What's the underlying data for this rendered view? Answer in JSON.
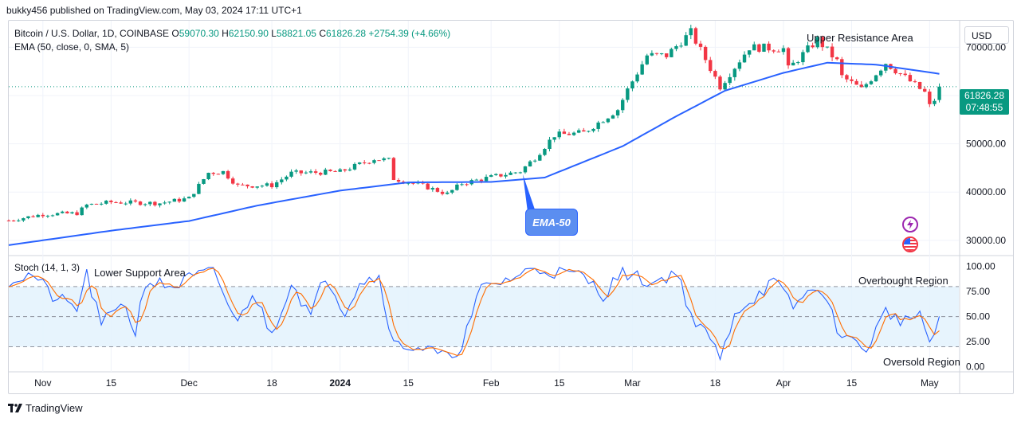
{
  "publisher": "bukky456 published on TradingView.com, May 03, 2024 17:11 UTC+1",
  "symbol": "Bitcoin / U.S. Dollar, 1D, COINBASE",
  "ohlc": {
    "o_label": "O",
    "o": "59070.30",
    "h_label": "H",
    "h": "62150.90",
    "l_label": "L",
    "l": "58821.05",
    "c_label": "C",
    "c": "61826.28",
    "change": "+2754.39 (+4.66%)"
  },
  "ema_legend": "EMA (50, close, 0, SMA, 5)",
  "stoch_legend": "Stoch (14, 1, 3)",
  "currency": "USD",
  "last_price": "61826.28",
  "countdown": "07:48:55",
  "annotations": {
    "upper_resistance": "Upper Resistance Area",
    "lower_support": "Lower Support Area",
    "overbought": "Overbought Region",
    "oversold": "Oversold Region",
    "ema_callout": "EMA-50"
  },
  "brand": "TradingView",
  "colors": {
    "up": "#089981",
    "down": "#f23645",
    "ema": "#2962ff",
    "stoch_k": "#2962ff",
    "stoch_d": "#ff6d00",
    "band": "#e3f2fd"
  },
  "chart_data": {
    "type": "candlestick",
    "price_axis": {
      "ticks": [
        30000,
        40000,
        50000,
        60000,
        70000
      ],
      "tick_labels": [
        "30000.00",
        "40000.00",
        "50000.00",
        "",
        "70000.00"
      ],
      "range": [
        27000,
        75500
      ]
    },
    "stoch_axis": {
      "ticks": [
        0,
        25,
        50,
        75,
        100
      ],
      "tick_labels": [
        "0.00",
        "25.00",
        "50.00",
        "75.00",
        "100.00"
      ],
      "range": [
        -5,
        110
      ],
      "band": [
        20,
        80
      ]
    },
    "x_labels": [
      "Nov",
      "15",
      "Dec",
      "18",
      "2024",
      "15",
      "Feb",
      "15",
      "Mar",
      "18",
      "Apr",
      "15",
      "May"
    ],
    "x_label_dates": [
      "2023-11-01",
      "2023-11-15",
      "2023-12-01",
      "2023-12-18",
      "2024-01-01",
      "2024-01-15",
      "2024-02-01",
      "2024-02-15",
      "2024-03-01",
      "2024-03-18",
      "2024-04-01",
      "2024-04-15",
      "2024-05-01"
    ],
    "close_anchors": [
      [
        "2023-10-25",
        34100
      ],
      [
        "2023-11-01",
        35400
      ],
      [
        "2023-11-08",
        35600
      ],
      [
        "2023-11-10",
        37300
      ],
      [
        "2023-11-15",
        37900
      ],
      [
        "2023-11-25",
        37700
      ],
      [
        "2023-12-01",
        38700
      ],
      [
        "2023-12-05",
        44000
      ],
      [
        "2023-12-08",
        44200
      ],
      [
        "2023-12-11",
        41300
      ],
      [
        "2023-12-18",
        41400
      ],
      [
        "2023-12-22",
        43900
      ],
      [
        "2024-01-01",
        44200
      ],
      [
        "2024-01-08",
        46900
      ],
      [
        "2024-01-11",
        46600
      ],
      [
        "2024-01-12",
        42800
      ],
      [
        "2024-01-18",
        41300
      ],
      [
        "2024-01-23",
        39600
      ],
      [
        "2024-01-26",
        41800
      ],
      [
        "2024-02-01",
        43100
      ],
      [
        "2024-02-07",
        44300
      ],
      [
        "2024-02-10",
        47100
      ],
      [
        "2024-02-14",
        51800
      ],
      [
        "2024-02-20",
        52300
      ],
      [
        "2024-02-27",
        57100
      ],
      [
        "2024-02-29",
        61200
      ],
      [
        "2024-03-04",
        68300
      ],
      [
        "2024-03-08",
        68300
      ],
      [
        "2024-03-13",
        73100
      ],
      [
        "2024-03-19",
        61900
      ],
      [
        "2024-03-25",
        70000
      ],
      [
        "2024-04-01",
        69700
      ],
      [
        "2024-04-02",
        65500
      ],
      [
        "2024-04-08",
        71600
      ],
      [
        "2024-04-12",
        67100
      ],
      [
        "2024-04-13",
        63900
      ],
      [
        "2024-04-17",
        61300
      ],
      [
        "2024-04-22",
        66800
      ],
      [
        "2024-04-25",
        64500
      ],
      [
        "2024-04-30",
        60600
      ],
      [
        "2024-05-01",
        57800
      ],
      [
        "2024-05-02",
        59100
      ],
      [
        "2024-05-03",
        61826
      ]
    ],
    "ema50_anchors": [
      [
        "2023-10-25",
        29000
      ],
      [
        "2023-11-15",
        32000
      ],
      [
        "2023-12-01",
        34000
      ],
      [
        "2023-12-15",
        37200
      ],
      [
        "2024-01-01",
        40300
      ],
      [
        "2024-01-15",
        42000
      ],
      [
        "2024-02-01",
        42100
      ],
      [
        "2024-02-12",
        43000
      ],
      [
        "2024-02-28",
        49500
      ],
      [
        "2024-03-10",
        55700
      ],
      [
        "2024-03-20",
        61000
      ],
      [
        "2024-04-01",
        64700
      ],
      [
        "2024-04-10",
        66800
      ],
      [
        "2024-04-20",
        66400
      ],
      [
        "2024-05-03",
        64500
      ]
    ],
    "stoch_k_anchors": [
      [
        "2023-10-25",
        86
      ],
      [
        "2023-10-30",
        92
      ],
      [
        "2023-11-03",
        70
      ],
      [
        "2023-11-08",
        58
      ],
      [
        "2023-11-10",
        92
      ],
      [
        "2023-11-13",
        40
      ],
      [
        "2023-11-17",
        67
      ],
      [
        "2023-11-20",
        35
      ],
      [
        "2023-11-22",
        85
      ],
      [
        "2023-11-28",
        80
      ],
      [
        "2023-12-01",
        88
      ],
      [
        "2023-12-06",
        95
      ],
      [
        "2023-12-11",
        42
      ],
      [
        "2023-12-14",
        75
      ],
      [
        "2023-12-18",
        32
      ],
      [
        "2023-12-22",
        85
      ],
      [
        "2023-12-26",
        50
      ],
      [
        "2023-12-29",
        92
      ],
      [
        "2024-01-02",
        55
      ],
      [
        "2024-01-05",
        85
      ],
      [
        "2024-01-09",
        90
      ],
      [
        "2024-01-12",
        22
      ],
      [
        "2024-01-17",
        20
      ],
      [
        "2024-01-20",
        15
      ],
      [
        "2024-01-23",
        8
      ],
      [
        "2024-01-26",
        22
      ],
      [
        "2024-01-30",
        78
      ],
      [
        "2024-02-05",
        88
      ],
      [
        "2024-02-10",
        98
      ],
      [
        "2024-02-20",
        90
      ],
      [
        "2024-02-24",
        72
      ],
      [
        "2024-02-28",
        95
      ],
      [
        "2024-03-05",
        83
      ],
      [
        "2024-03-10",
        95
      ],
      [
        "2024-03-14",
        40
      ],
      [
        "2024-03-17",
        30
      ],
      [
        "2024-03-19",
        5
      ],
      [
        "2024-03-22",
        55
      ],
      [
        "2024-03-25",
        65
      ],
      [
        "2024-03-30",
        85
      ],
      [
        "2024-04-03",
        60
      ],
      [
        "2024-04-08",
        82
      ],
      [
        "2024-04-12",
        40
      ],
      [
        "2024-04-15",
        25
      ],
      [
        "2024-04-18",
        18
      ],
      [
        "2024-04-22",
        55
      ],
      [
        "2024-04-26",
        45
      ],
      [
        "2024-04-29",
        55
      ],
      [
        "2024-05-01",
        18
      ],
      [
        "2024-05-03",
        50
      ]
    ]
  }
}
